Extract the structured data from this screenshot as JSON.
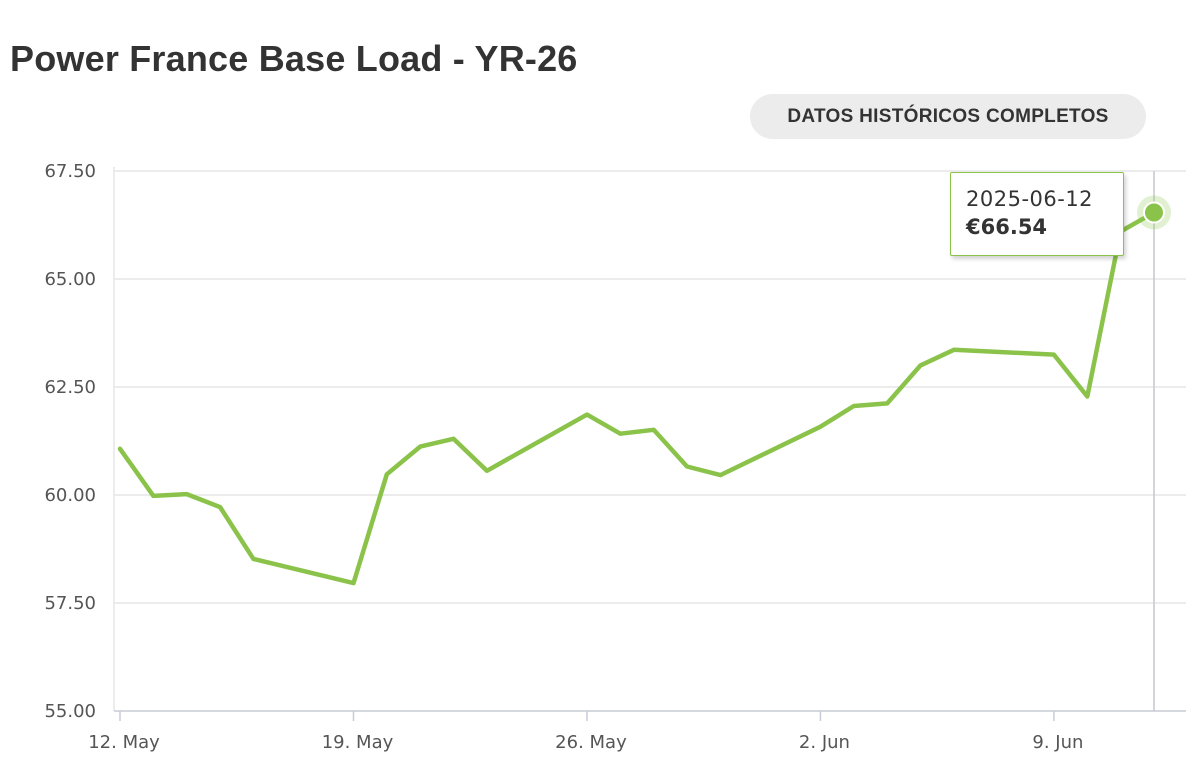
{
  "header": {
    "title": "Power France Base Load - YR-26",
    "history_button_label": "DATOS HISTÓRICOS COMPLETOS"
  },
  "tooltip": {
    "date": "2025-06-12",
    "value": "€66.54"
  },
  "colors": {
    "series": "#8bc34a",
    "grid": "#e6e6e6",
    "axis_text": "#555555",
    "title": "#333333"
  },
  "chart_data": {
    "type": "line",
    "title": "Power France Base Load - YR-26",
    "xlabel": "",
    "ylabel": "",
    "ylim": [
      55.0,
      67.5
    ],
    "yticks": [
      "55.00",
      "57.50",
      "60.00",
      "62.50",
      "65.00",
      "67.50"
    ],
    "xticks": [
      {
        "date": "2025-05-12",
        "label": "12. May"
      },
      {
        "date": "2025-05-19",
        "label": "19. May"
      },
      {
        "date": "2025-05-26",
        "label": "26. May"
      },
      {
        "date": "2025-06-02",
        "label": "2. Jun"
      },
      {
        "date": "2025-06-09",
        "label": "9. Jun"
      }
    ],
    "grid": true,
    "legend": "none",
    "x_range": [
      "2025-05-12",
      "2025-06-12"
    ],
    "series": [
      {
        "points": [
          {
            "x": "2025-05-12",
            "y": 61.07
          },
          {
            "x": "2025-05-13",
            "y": 59.98
          },
          {
            "x": "2025-05-14",
            "y": 60.02
          },
          {
            "x": "2025-05-15",
            "y": 59.72
          },
          {
            "x": "2025-05-16",
            "y": 58.52
          },
          {
            "x": "2025-05-19",
            "y": 57.96
          },
          {
            "x": "2025-05-20",
            "y": 60.48
          },
          {
            "x": "2025-05-21",
            "y": 61.12
          },
          {
            "x": "2025-05-22",
            "y": 61.3
          },
          {
            "x": "2025-05-23",
            "y": 60.56
          },
          {
            "x": "2025-05-26",
            "y": 61.86
          },
          {
            "x": "2025-05-27",
            "y": 61.42
          },
          {
            "x": "2025-05-28",
            "y": 61.51
          },
          {
            "x": "2025-05-29",
            "y": 60.66
          },
          {
            "x": "2025-05-30",
            "y": 60.46
          },
          {
            "x": "2025-06-02",
            "y": 61.58
          },
          {
            "x": "2025-06-03",
            "y": 62.06
          },
          {
            "x": "2025-06-04",
            "y": 62.12
          },
          {
            "x": "2025-06-05",
            "y": 63.0
          },
          {
            "x": "2025-06-06",
            "y": 63.36
          },
          {
            "x": "2025-06-09",
            "y": 63.25
          },
          {
            "x": "2025-06-10",
            "y": 62.28
          },
          {
            "x": "2025-06-11",
            "y": 66.1
          },
          {
            "x": "2025-06-12",
            "y": 66.54
          }
        ]
      }
    ]
  }
}
